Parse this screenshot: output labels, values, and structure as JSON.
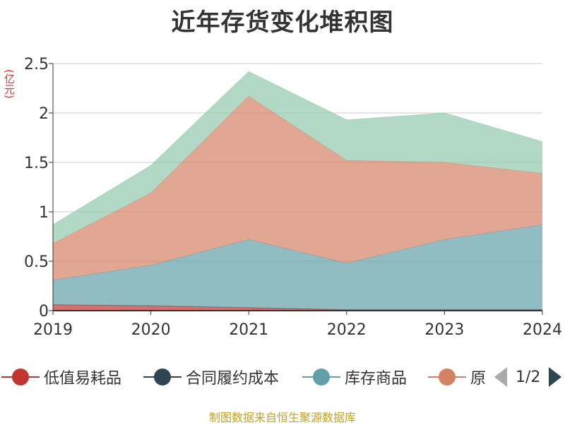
{
  "chart_data": {
    "type": "area",
    "stacked": true,
    "title": "近年存货变化堆积图",
    "ylabel": "(亿元)",
    "x": [
      "2019",
      "2020",
      "2021",
      "2022",
      "2023",
      "2024"
    ],
    "ylim": [
      0,
      2.5
    ],
    "yticks": [
      "0",
      "0.5",
      "1",
      "1.5",
      "2",
      "2.5"
    ],
    "grid": true,
    "legend_position": "bottom",
    "series": [
      {
        "name": "低值易耗品",
        "color": "#c23531",
        "values": [
          0.06,
          0.05,
          0.03,
          0.01,
          0.01,
          0.01
        ]
      },
      {
        "name": "合同履约成本",
        "color": "#2f4554",
        "values": [
          0.0,
          0.0,
          0.0,
          0.0,
          0.0,
          0.0
        ]
      },
      {
        "name": "库存商品",
        "color": "#61a0a8",
        "values": [
          0.25,
          0.41,
          0.69,
          0.47,
          0.71,
          0.86
        ]
      },
      {
        "name": "原材料",
        "color": "#d48265",
        "values": [
          0.37,
          0.73,
          1.45,
          1.04,
          0.78,
          0.52
        ]
      },
      {
        "name": "",
        "color": "#91c7ae",
        "values": [
          0.19,
          0.28,
          0.25,
          0.41,
          0.5,
          0.32
        ]
      }
    ]
  },
  "legend": {
    "items": [
      {
        "label": "低值易耗品",
        "color": "#c23531"
      },
      {
        "label": "合同履约成本",
        "color": "#2f4554"
      },
      {
        "label": "库存商品",
        "color": "#61a0a8"
      },
      {
        "label": "原",
        "color": "#d48265"
      }
    ],
    "page_text": "1/2"
  },
  "source_note": "制图数据来自恒生聚源数据库"
}
